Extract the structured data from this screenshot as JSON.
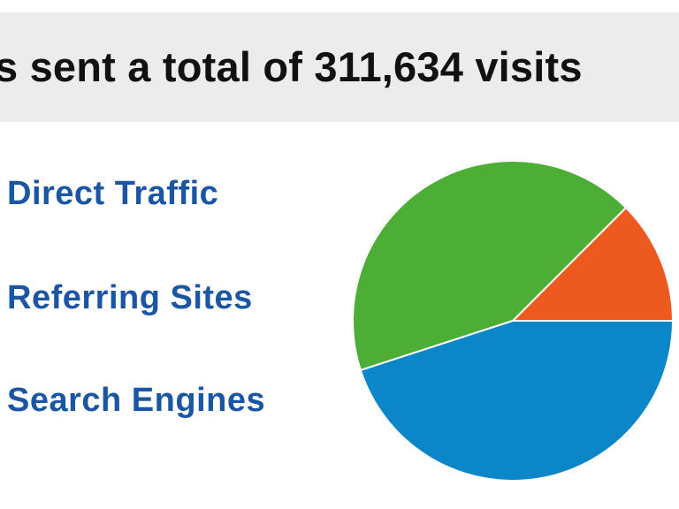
{
  "header": {
    "text": "s sent a total of 311,634 visits"
  },
  "legend": {
    "items": [
      {
        "label": "Direct Traffic"
      },
      {
        "label": "Referring Sites"
      },
      {
        "label": "Search Engines"
      }
    ]
  },
  "chart_data": {
    "type": "pie",
    "title": "",
    "total_visits": "311,634",
    "slices": [
      {
        "category": "Direct Traffic",
        "percent": 42.5,
        "color": "#4cae35"
      },
      {
        "category": "Referring Sites",
        "percent": 12.5,
        "color": "#ec5a20"
      },
      {
        "category": "Search Engines",
        "percent": 45.0,
        "color": "#0a86c9"
      }
    ],
    "legend_placement": "left"
  }
}
